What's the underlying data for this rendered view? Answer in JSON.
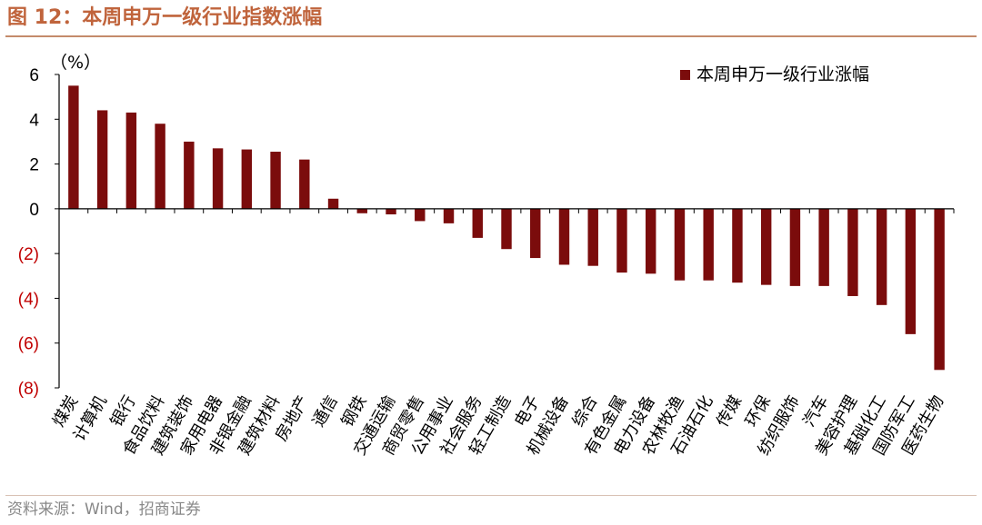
{
  "title": "图 12：本周申万一级行业指数涨幅",
  "source": "资料来源：Wind，招商证券",
  "colors": {
    "bar": "#7b0c0c",
    "negative_tick": "#c00000",
    "axis": "#000000",
    "accent": "#c0643c"
  },
  "chart_data": {
    "type": "bar",
    "title": "图 12：本周申万一级行业指数涨幅",
    "ylabel": "（%）",
    "ylim": [
      -8,
      6
    ],
    "ytick_labels": [
      "6",
      "4",
      "2",
      "0",
      "(2)",
      "(4)",
      "(6)",
      "(8)"
    ],
    "ytick_values": [
      6,
      4,
      2,
      0,
      -2,
      -4,
      -6,
      -8
    ],
    "legend_position": "top-right",
    "grid": false,
    "categories": [
      "煤炭",
      "计算机",
      "银行",
      "食品饮料",
      "建筑装饰",
      "家用电器",
      "非银金融",
      "建筑材料",
      "房地产",
      "通信",
      "钢铁",
      "交通运输",
      "商贸零售",
      "公用事业",
      "社会服务",
      "轻工制造",
      "电子",
      "机械设备",
      "综合",
      "有色金属",
      "电力设备",
      "农林牧渔",
      "石油石化",
      "传媒",
      "环保",
      "纺织服饰",
      "汽车",
      "美容护理",
      "基础化工",
      "国防军工",
      "医药生物"
    ],
    "series": [
      {
        "name": "本周申万一级行业涨幅",
        "values": [
          5.5,
          4.4,
          4.3,
          3.8,
          3.0,
          2.7,
          2.65,
          2.55,
          2.2,
          0.45,
          -0.2,
          -0.25,
          -0.55,
          -0.65,
          -1.3,
          -1.8,
          -2.2,
          -2.5,
          -2.55,
          -2.85,
          -2.9,
          -3.2,
          -3.2,
          -3.3,
          -3.4,
          -3.45,
          -3.45,
          -3.9,
          -4.3,
          -5.6,
          -7.2
        ]
      }
    ]
  }
}
